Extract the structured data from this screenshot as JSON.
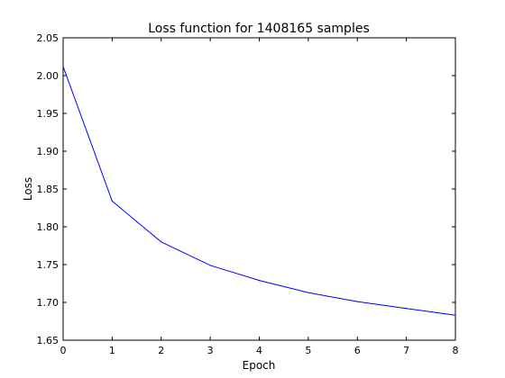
{
  "chart_data": {
    "type": "line",
    "title": "Loss function for 1408165 samples",
    "xlabel": "Epoch",
    "ylabel": "Loss",
    "xlim": [
      0,
      8
    ],
    "ylim": [
      1.65,
      2.05
    ],
    "xticks": [
      "0",
      "1",
      "2",
      "3",
      "4",
      "5",
      "6",
      "7",
      "8"
    ],
    "yticks": [
      "1.65",
      "1.70",
      "1.75",
      "1.80",
      "1.85",
      "1.90",
      "1.95",
      "2.00",
      "2.05"
    ],
    "grid": false,
    "series": [
      {
        "color": "#0000ff",
        "x": [
          0,
          1,
          2,
          3,
          4,
          5,
          6,
          7,
          8
        ],
        "y": [
          2.012,
          1.834,
          1.78,
          1.749,
          1.729,
          1.713,
          1.701,
          1.692,
          1.683
        ]
      }
    ]
  }
}
